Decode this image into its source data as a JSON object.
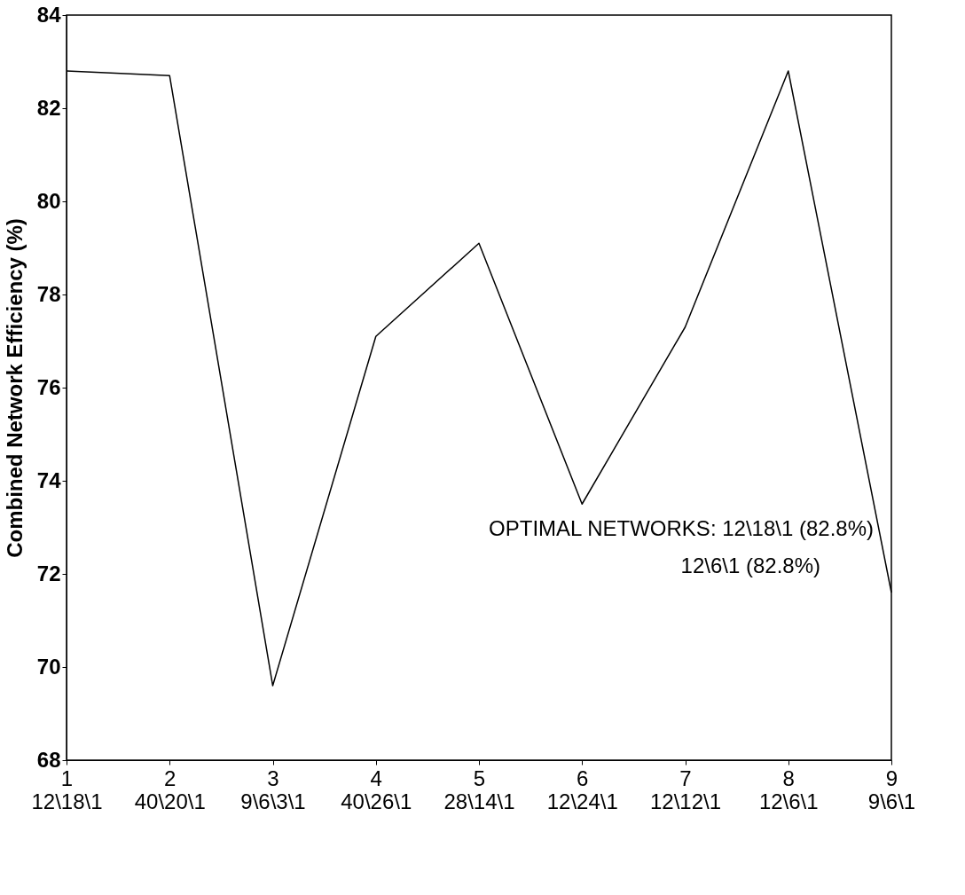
{
  "chart_data": {
    "type": "line",
    "ylabel": "Combined Network Efficiency (%)",
    "categories": [
      "1\n12\\18\\1",
      "2\n40\\20\\1",
      "3\n9\\6\\3\\1",
      "4\n40\\26\\1",
      "5\n28\\14\\1",
      "6\n12\\24\\1",
      "7\n12\\12\\1",
      "8\n12\\6\\1",
      "9\n9\\6\\1"
    ],
    "series": [
      {
        "color": "#000000",
        "values": [
          82.8,
          82.7,
          69.6,
          77.1,
          79.1,
          73.5,
          77.3,
          82.8,
          71.6
        ]
      }
    ],
    "ylim": [
      68,
      84
    ],
    "yticks": [
      68,
      70,
      72,
      74,
      76,
      78,
      80,
      82,
      84
    ],
    "annotations": [
      "OPTIMAL NETWORKS: 12\\18\\1 (82.8%)",
      "12\\6\\1 (82.8%)"
    ],
    "grid": false,
    "marker": "none",
    "line_style": "solid"
  }
}
